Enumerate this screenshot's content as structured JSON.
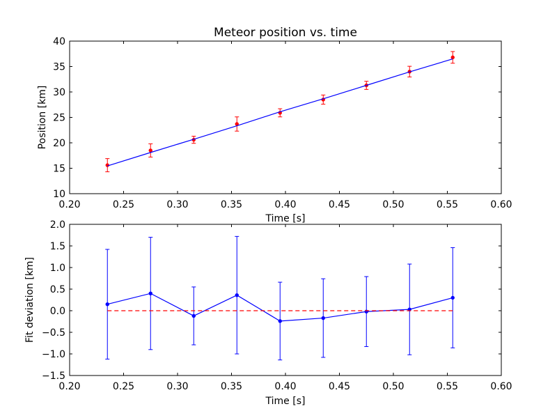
{
  "chart_data": [
    {
      "type": "scatter",
      "title": "Meteor position vs. time",
      "xlabel": "Time [s]",
      "ylabel": "Position [km]",
      "xlim": [
        0.2,
        0.6
      ],
      "ylim": [
        10,
        40
      ],
      "xticks": [
        "0.20",
        "0.25",
        "0.30",
        "0.35",
        "0.40",
        "0.45",
        "0.50",
        "0.55",
        "0.60"
      ],
      "yticks": [
        "10",
        "15",
        "20",
        "25",
        "30",
        "35",
        "40"
      ],
      "grid": false,
      "series": [
        {
          "kind": "points-with-errorbars",
          "color": "#ff0000",
          "x": [
            0.235,
            0.275,
            0.315,
            0.355,
            0.395,
            0.435,
            0.475,
            0.515,
            0.555
          ],
          "y": [
            15.6,
            18.5,
            20.6,
            23.7,
            25.9,
            28.5,
            31.3,
            34.0,
            36.8
          ],
          "yerr": [
            1.3,
            1.3,
            0.7,
            1.4,
            0.8,
            0.9,
            0.8,
            1.05,
            1.15
          ]
        },
        {
          "kind": "fit-line",
          "color": "#0000ff",
          "x": [
            0.235,
            0.275,
            0.315,
            0.355,
            0.395,
            0.435,
            0.475,
            0.515,
            0.555
          ],
          "y": [
            15.45,
            18.1,
            20.7,
            23.35,
            26.1,
            28.65,
            31.3,
            33.95,
            36.5
          ]
        }
      ]
    },
    {
      "type": "line",
      "title": "",
      "xlabel": "Time [s]",
      "ylabel": "Fit deviation [km]",
      "xlim": [
        0.2,
        0.6
      ],
      "ylim": [
        -1.5,
        2.0
      ],
      "xticks": [
        "0.20",
        "0.25",
        "0.30",
        "0.35",
        "0.40",
        "0.45",
        "0.50",
        "0.55",
        "0.60"
      ],
      "yticks": [
        "2.0",
        "1.5",
        "1.0",
        "0.5",
        "0.0",
        "−0.5",
        "−1.0",
        "−1.5"
      ],
      "grid": false,
      "series": [
        {
          "kind": "line-with-errorbars",
          "color": "#0000ff",
          "x": [
            0.235,
            0.275,
            0.315,
            0.355,
            0.395,
            0.435,
            0.475,
            0.515,
            0.555
          ],
          "y": [
            0.15,
            0.4,
            -0.12,
            0.36,
            -0.24,
            -0.17,
            -0.02,
            0.03,
            0.3
          ],
          "yerr": [
            1.27,
            1.3,
            0.67,
            1.36,
            0.9,
            0.91,
            0.81,
            1.05,
            1.16
          ]
        },
        {
          "kind": "reference-line",
          "color": "#ff0000",
          "style": "dashed",
          "x": [
            0.235,
            0.555
          ],
          "y": [
            0,
            0
          ]
        }
      ]
    }
  ]
}
